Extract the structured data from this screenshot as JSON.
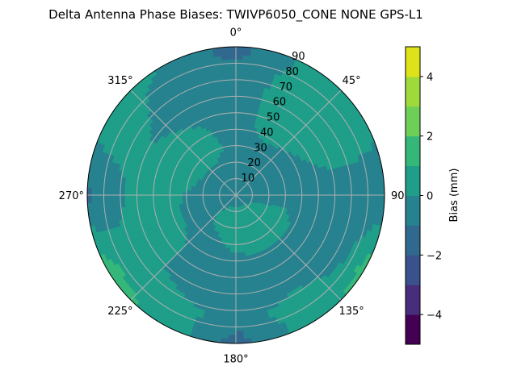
{
  "chart_data": {
    "type": "heatmap",
    "projection": "polar",
    "title": "Delta Antenna Phase Biases: TWIVP6050_CONE  NONE GPS-L1",
    "theta_zero": "top",
    "theta_direction": "clockwise",
    "theta_ticks": [
      "0°",
      "45°",
      "90°",
      "135°",
      "180°",
      "225°",
      "270°",
      "315°"
    ],
    "r_ticks": [
      "10",
      "20",
      "30",
      "40",
      "50",
      "60",
      "70",
      "80",
      "90"
    ],
    "rlim": [
      0,
      90
    ],
    "grid": true,
    "colorbar": {
      "label": "Bias (mm)",
      "levels": [
        -5,
        -4,
        -3,
        -2,
        -1,
        0,
        1,
        2,
        3,
        4,
        5
      ],
      "tick_labels": [
        "−4",
        "−2",
        "0",
        "2",
        "4"
      ],
      "tick_values": [
        -4,
        -2,
        0,
        2,
        4
      ],
      "colormap": "viridis",
      "colors": [
        "#440154",
        "#472d7b",
        "#3b518b",
        "#31688e",
        "#26828e",
        "#1f9e89",
        "#35b779",
        "#6ece58",
        "#9fda3a",
        "#dde318"
      ]
    },
    "azimuth_deg": [
      0,
      30,
      60,
      90,
      120,
      150,
      180,
      210,
      240,
      270,
      300,
      330
    ],
    "r_values": [
      0,
      15,
      30,
      45,
      60,
      75,
      90
    ],
    "z_mm": [
      [
        -0.5,
        -0.5,
        -0.5,
        -0.5,
        -0.5,
        -0.7,
        -1.5
      ],
      [
        -0.5,
        -0.5,
        -0.3,
        0.5,
        0.5,
        0.5,
        0.3
      ],
      [
        -0.5,
        -0.5,
        -0.5,
        0.0,
        0.5,
        0.5,
        0.5
      ],
      [
        -0.5,
        -0.5,
        -0.5,
        -0.5,
        -0.5,
        -0.5,
        -1.0
      ],
      [
        -0.5,
        0.3,
        0.5,
        -0.5,
        -0.5,
        -0.2,
        1.5
      ],
      [
        -0.5,
        0.5,
        0.5,
        -0.5,
        -0.5,
        0.5,
        0.5
      ],
      [
        -0.5,
        0.5,
        0.3,
        -0.5,
        -0.5,
        -0.5,
        -1.5
      ],
      [
        -0.5,
        0.5,
        -0.3,
        -0.5,
        -0.5,
        0.5,
        0.8
      ],
      [
        -0.5,
        -0.5,
        -0.3,
        0.5,
        0.5,
        0.5,
        1.5
      ],
      [
        -0.5,
        -0.5,
        -0.1,
        0.5,
        0.4,
        -0.5,
        -1.2
      ],
      [
        -0.5,
        -0.5,
        0.5,
        0.5,
        0.0,
        0.5,
        0.5
      ],
      [
        -0.5,
        -0.5,
        0.5,
        0.1,
        -0.5,
        -0.5,
        0.0
      ]
    ]
  }
}
